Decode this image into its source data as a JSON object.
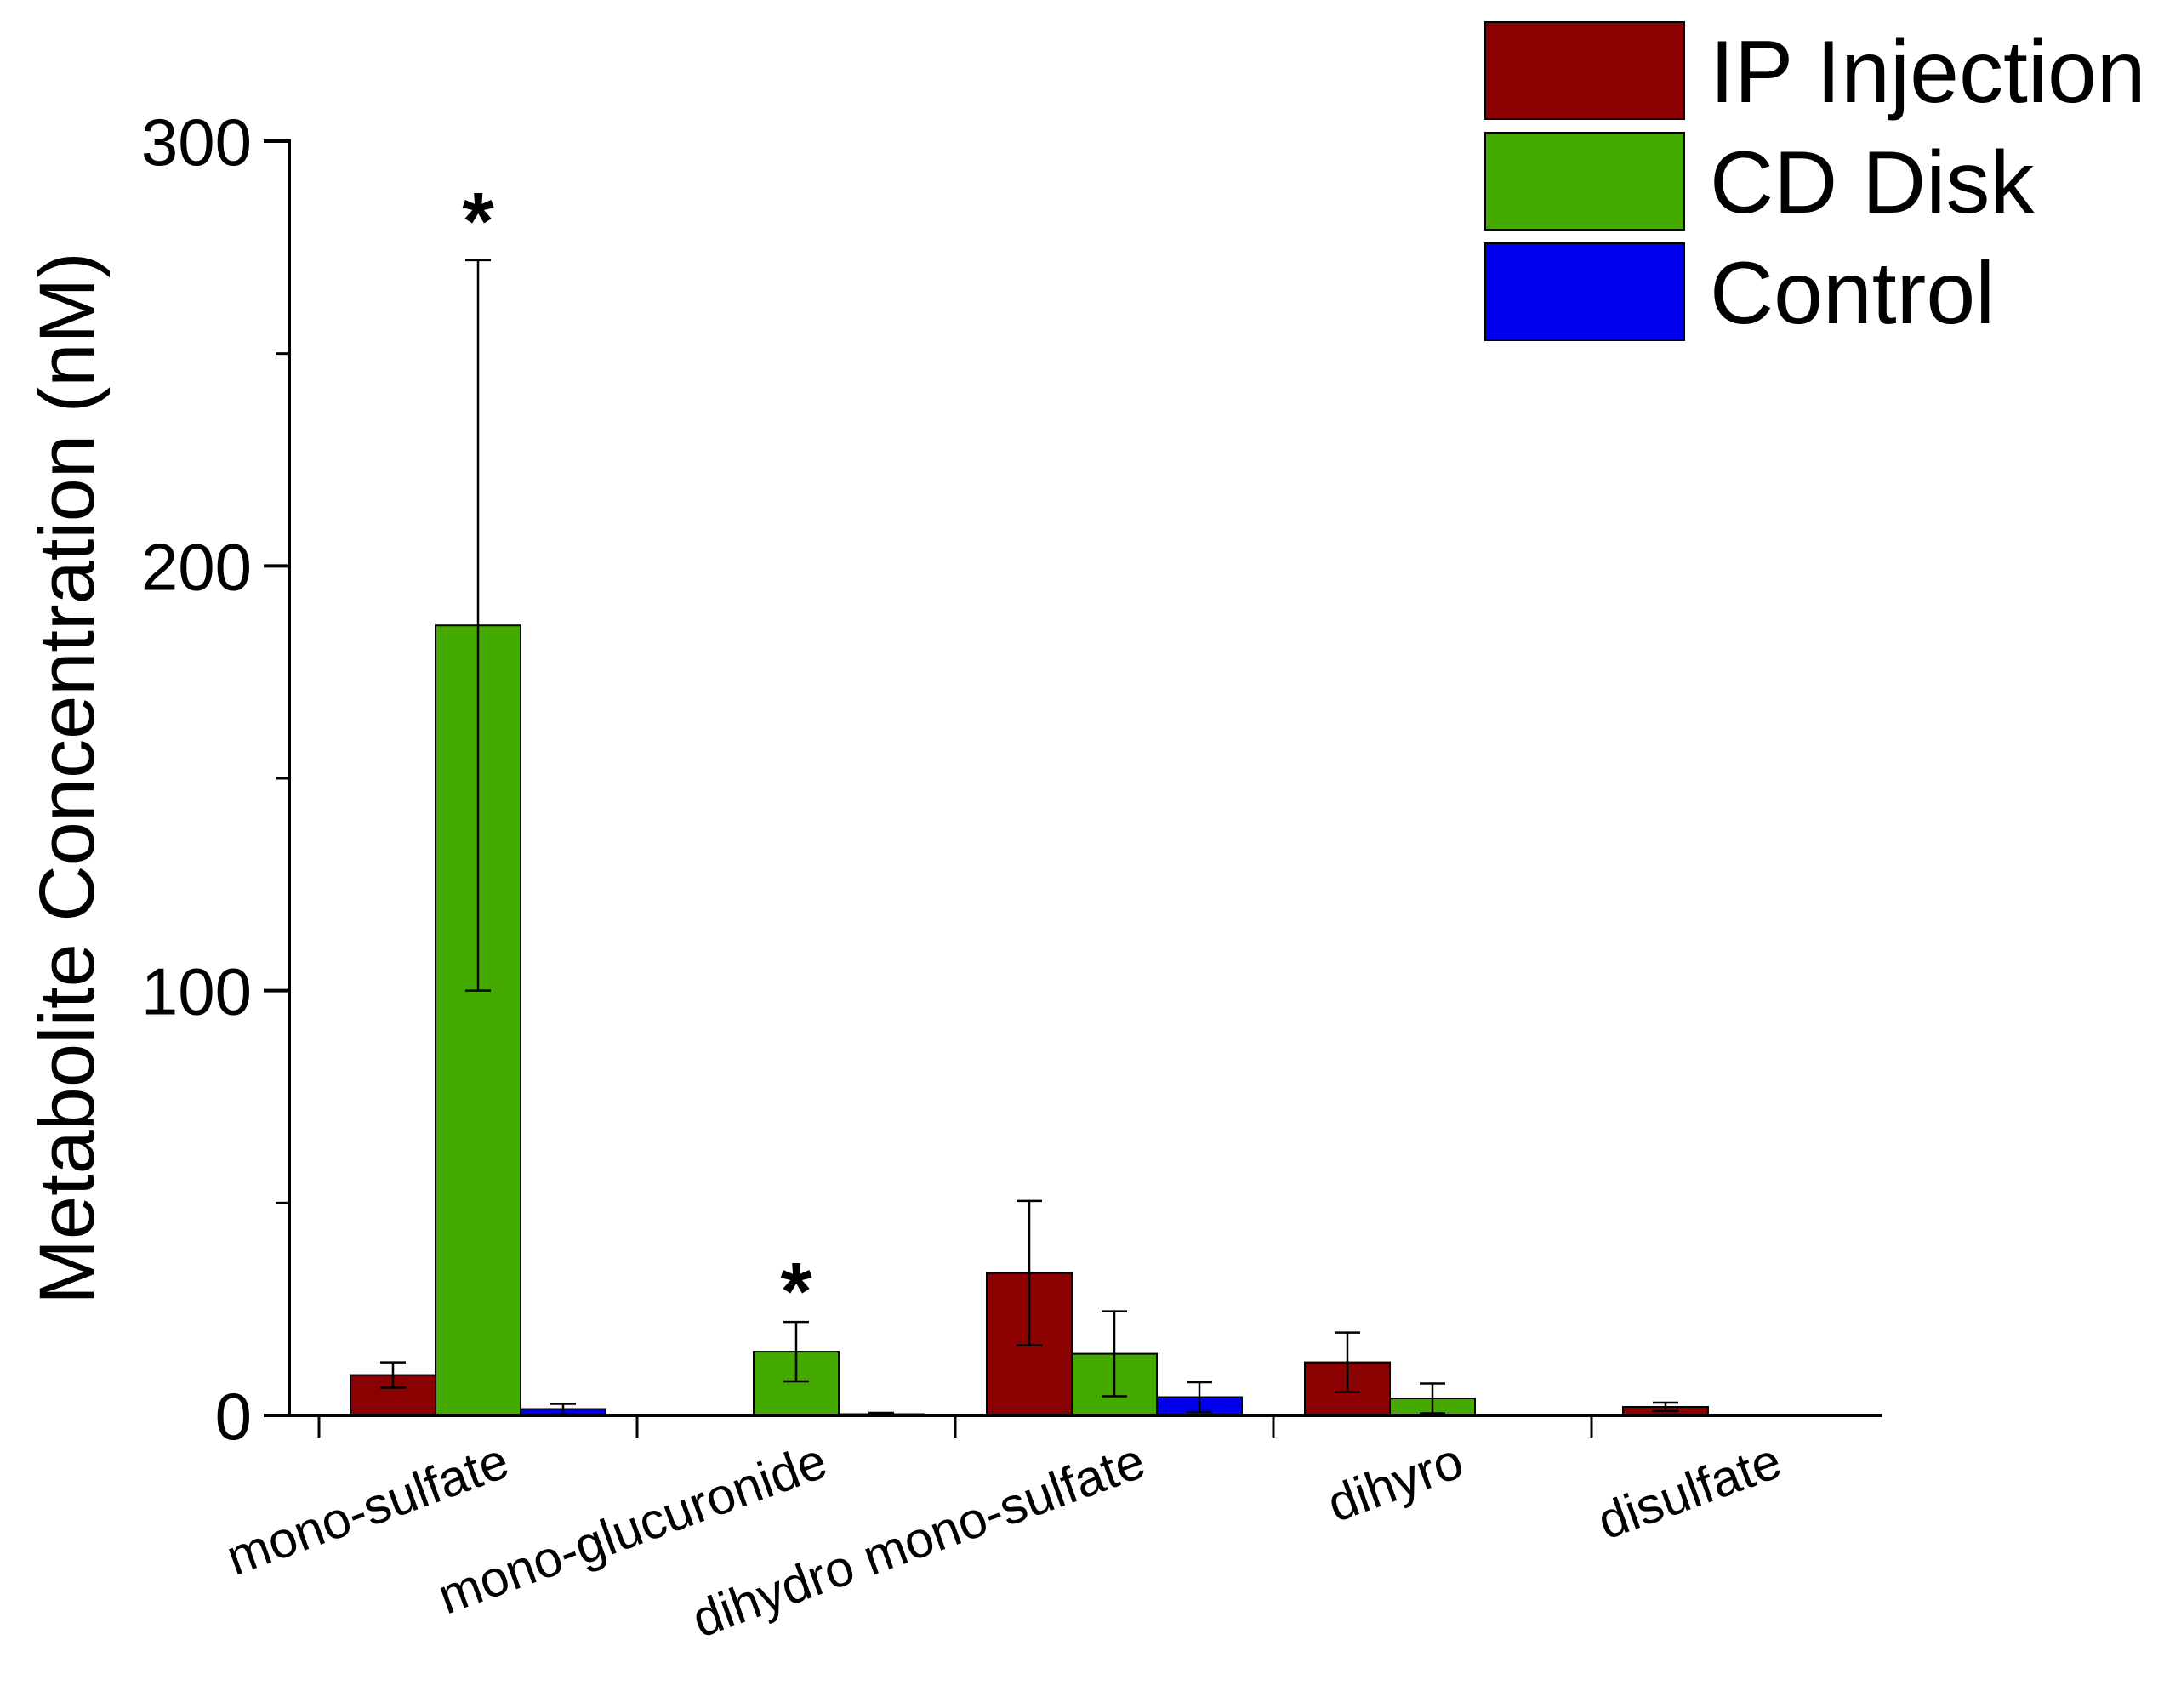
{
  "chart_data": {
    "type": "bar",
    "title": "",
    "xlabel": "",
    "ylabel": "Metabolite Concentration (nM)",
    "ylim": [
      0,
      300
    ],
    "yticks_major": [
      0,
      100,
      200,
      300
    ],
    "yticks_minor": [
      50,
      150,
      250
    ],
    "legend_position": "top-right",
    "categories": [
      "mono-sulfate",
      "mono-glucuronide",
      "dihydro mono-sulfate",
      "dihyro",
      "disulfate"
    ],
    "series": [
      {
        "name": "IP Injection",
        "color": "#8b0000",
        "values": [
          9.5,
          0,
          33.5,
          12.5,
          2
        ],
        "errors": [
          3,
          0,
          17,
          7,
          1
        ]
      },
      {
        "name": "CD Disk",
        "color": "#44aa00",
        "values": [
          186,
          15,
          14.5,
          4,
          0
        ],
        "errors": [
          86,
          7,
          10,
          3.5,
          0
        ]
      },
      {
        "name": "Control",
        "color": "#0000ee",
        "values": [
          1.5,
          0.3,
          4.3,
          0,
          0
        ],
        "errors": [
          1.2,
          0.3,
          3.5,
          0,
          0
        ]
      }
    ],
    "annotations": [
      {
        "text": "*",
        "category": "mono-sulfate",
        "series": "CD Disk",
        "value": 285
      },
      {
        "text": "*",
        "category": "mono-glucuronide",
        "series": "CD Disk",
        "value": 33
      }
    ]
  }
}
